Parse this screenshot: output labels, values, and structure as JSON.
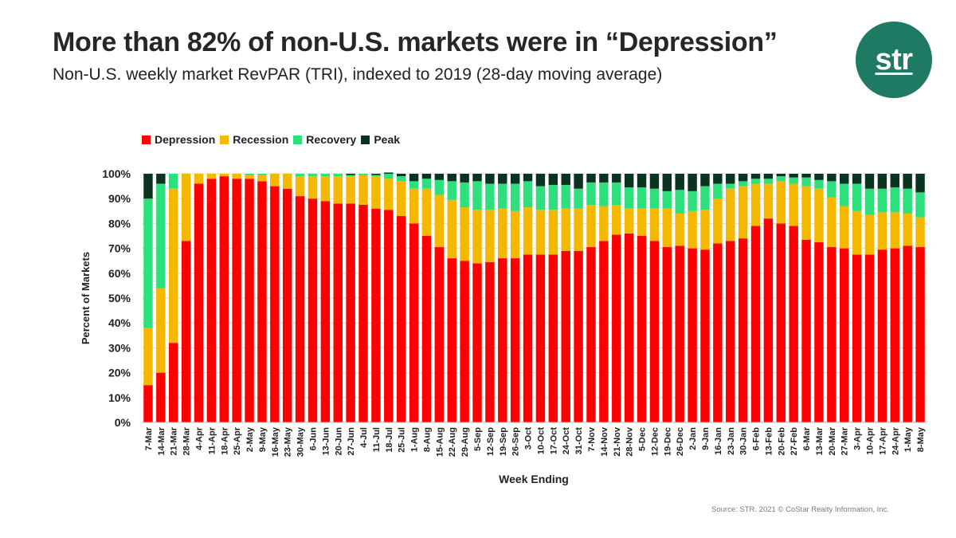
{
  "header": {
    "title": "More than 82% of non-U.S. markets were in “Depression”",
    "subtitle": "Non-U.S. weekly market RevPAR (TRI), indexed to 2019 (28-day moving average)"
  },
  "logo": {
    "text": "str",
    "color": "#1f7a64"
  },
  "footer": {
    "source": "Source: STR. 2021 © CoStar Realty Information, Inc."
  },
  "chart_data": {
    "type": "bar",
    "stacked": true,
    "title": "",
    "xlabel": "Week Ending",
    "ylabel": "Percent of Markets",
    "ylim": [
      0,
      100
    ],
    "yticks": [
      0,
      10,
      20,
      30,
      40,
      50,
      60,
      70,
      80,
      90,
      100
    ],
    "ytick_labels": [
      "0%",
      "10%",
      "20%",
      "30%",
      "40%",
      "50%",
      "60%",
      "70%",
      "80%",
      "90%",
      "100%"
    ],
    "grid": true,
    "legend_position": "top-left",
    "categories": [
      "7-Mar",
      "14-Mar",
      "21-Mar",
      "28-Mar",
      "4-Apr",
      "11-Apr",
      "18-Apr",
      "25-Apr",
      "2-May",
      "9-May",
      "16-May",
      "23-May",
      "30-May",
      "6-Jun",
      "13-Jun",
      "20-Jun",
      "27-Jun",
      "4-Jul",
      "11-Jul",
      "18-Jul",
      "25-Jul",
      "1-Aug",
      "8-Aug",
      "15-Aug",
      "22-Aug",
      "29-Aug",
      "5-Sep",
      "12-Sep",
      "19-Sep",
      "26-Sep",
      "3-Oct",
      "10-Oct",
      "17-Oct",
      "24-Oct",
      "31-Oct",
      "7-Nov",
      "14-Nov",
      "21-Nov",
      "28-Nov",
      "5-Dec",
      "12-Dec",
      "19-Dec",
      "26-Dec",
      "2-Jan",
      "9-Jan",
      "16-Jan",
      "23-Jan",
      "30-Jan",
      "6-Feb",
      "13-Feb",
      "20-Feb",
      "27-Feb",
      "6-Mar",
      "13-Mar",
      "20-Mar",
      "27-Mar",
      "3-Apr",
      "10-Apr",
      "17-Apr",
      "24-Apr",
      "1-May",
      "8-May"
    ],
    "series": [
      {
        "name": "Depression",
        "color": "#ff0000",
        "values": [
          15,
          20,
          32,
          73,
          96,
          98,
          99,
          98,
          98,
          97,
          95,
          94,
          91,
          90,
          89,
          88,
          88,
          87.5,
          86,
          85.5,
          83,
          80,
          75,
          70.5,
          66,
          65,
          64,
          64.5,
          66,
          66,
          67.5,
          67.5,
          67.5,
          69,
          69,
          70.5,
          73,
          75.5,
          76,
          75,
          73,
          70.5,
          71,
          70,
          69.5,
          72,
          73,
          74,
          79,
          82,
          80,
          79,
          73.5,
          72.5,
          70.5,
          70,
          67.5,
          67.5,
          69.5,
          70,
          71,
          70.5
        ]
      },
      {
        "name": "Recession",
        "color": "#f5b800",
        "values": [
          23,
          34,
          62,
          27,
          4,
          2,
          1,
          2,
          1.5,
          2.5,
          5,
          6,
          8,
          9,
          10,
          11,
          11,
          12,
          13,
          12.5,
          14,
          14,
          19,
          21,
          23.5,
          21.5,
          21.5,
          21,
          20,
          19,
          19,
          18,
          18,
          17,
          17,
          17,
          14,
          12,
          10,
          11,
          13,
          15.5,
          13,
          15,
          16,
          18,
          21,
          21,
          17,
          14,
          17,
          17,
          21.5,
          21.5,
          20,
          17,
          17.5,
          16,
          15,
          14.5,
          13,
          12
        ]
      },
      {
        "name": "Recovery",
        "color": "#2de07d",
        "values": [
          52,
          42,
          6,
          0,
          0,
          0,
          0,
          0,
          0.5,
          0.5,
          0,
          0,
          1,
          1,
          1,
          1,
          0.5,
          0.5,
          0.5,
          2,
          2,
          3,
          4,
          6,
          7.5,
          10,
          11.5,
          10.5,
          10,
          11,
          10.5,
          9.5,
          10,
          9.5,
          8,
          9,
          9.5,
          9,
          8.5,
          8.5,
          8,
          7,
          9.5,
          8,
          9.5,
          6,
          2,
          2,
          2,
          2,
          2,
          2.5,
          3.5,
          3.5,
          6.5,
          9,
          11,
          10.5,
          9.5,
          10,
          10,
          10
        ]
      },
      {
        "name": "Peak",
        "color": "#0b3320",
        "values": [
          10,
          4,
          0,
          0,
          0,
          0,
          0,
          0,
          0,
          0,
          0,
          0,
          0,
          0,
          0,
          0,
          0.5,
          0,
          0.5,
          0.5,
          1,
          3,
          2,
          2.5,
          3,
          3.5,
          3,
          4,
          4,
          4,
          3,
          5,
          4.5,
          4.5,
          6,
          3.5,
          3.5,
          3.5,
          5.5,
          5.5,
          6,
          7,
          6.5,
          7,
          5,
          4,
          4,
          3,
          2,
          2,
          1,
          1.5,
          1.5,
          2.5,
          3,
          4,
          4,
          6,
          6,
          5.5,
          6,
          7.5
        ]
      }
    ]
  }
}
